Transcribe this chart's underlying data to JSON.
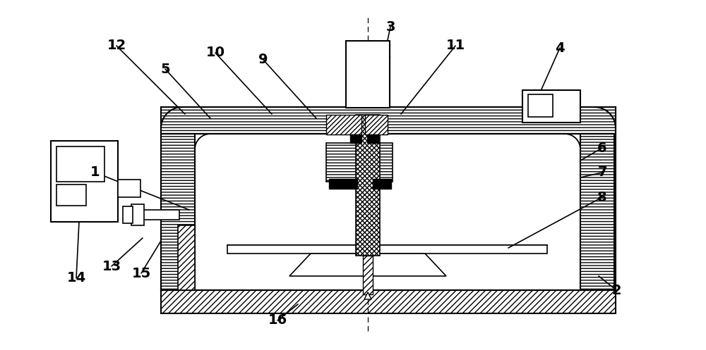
{
  "bg_color": "#ffffff",
  "line_color": "#000000",
  "fig_width": 10.0,
  "fig_height": 4.97,
  "dpi": 100,
  "label_fontsize": 14,
  "label_data": [
    [
      "1",
      135,
      245,
      268,
      298
    ],
    [
      "2",
      873,
      412,
      848,
      392
    ],
    [
      "3",
      553,
      38,
      530,
      148
    ],
    [
      "4",
      793,
      68,
      762,
      138
    ],
    [
      "5",
      234,
      98,
      298,
      168
    ],
    [
      "6",
      853,
      210,
      822,
      228
    ],
    [
      "7",
      853,
      245,
      822,
      252
    ],
    [
      "8",
      853,
      280,
      720,
      352
    ],
    [
      "9",
      373,
      85,
      448,
      168
    ],
    [
      "10",
      305,
      75,
      385,
      162
    ],
    [
      "11",
      645,
      65,
      568,
      162
    ],
    [
      "12",
      165,
      65,
      262,
      162
    ],
    [
      "13",
      158,
      378,
      202,
      338
    ],
    [
      "14",
      108,
      395,
      112,
      315
    ],
    [
      "15",
      200,
      388,
      228,
      342
    ],
    [
      "16",
      393,
      455,
      422,
      432
    ]
  ]
}
